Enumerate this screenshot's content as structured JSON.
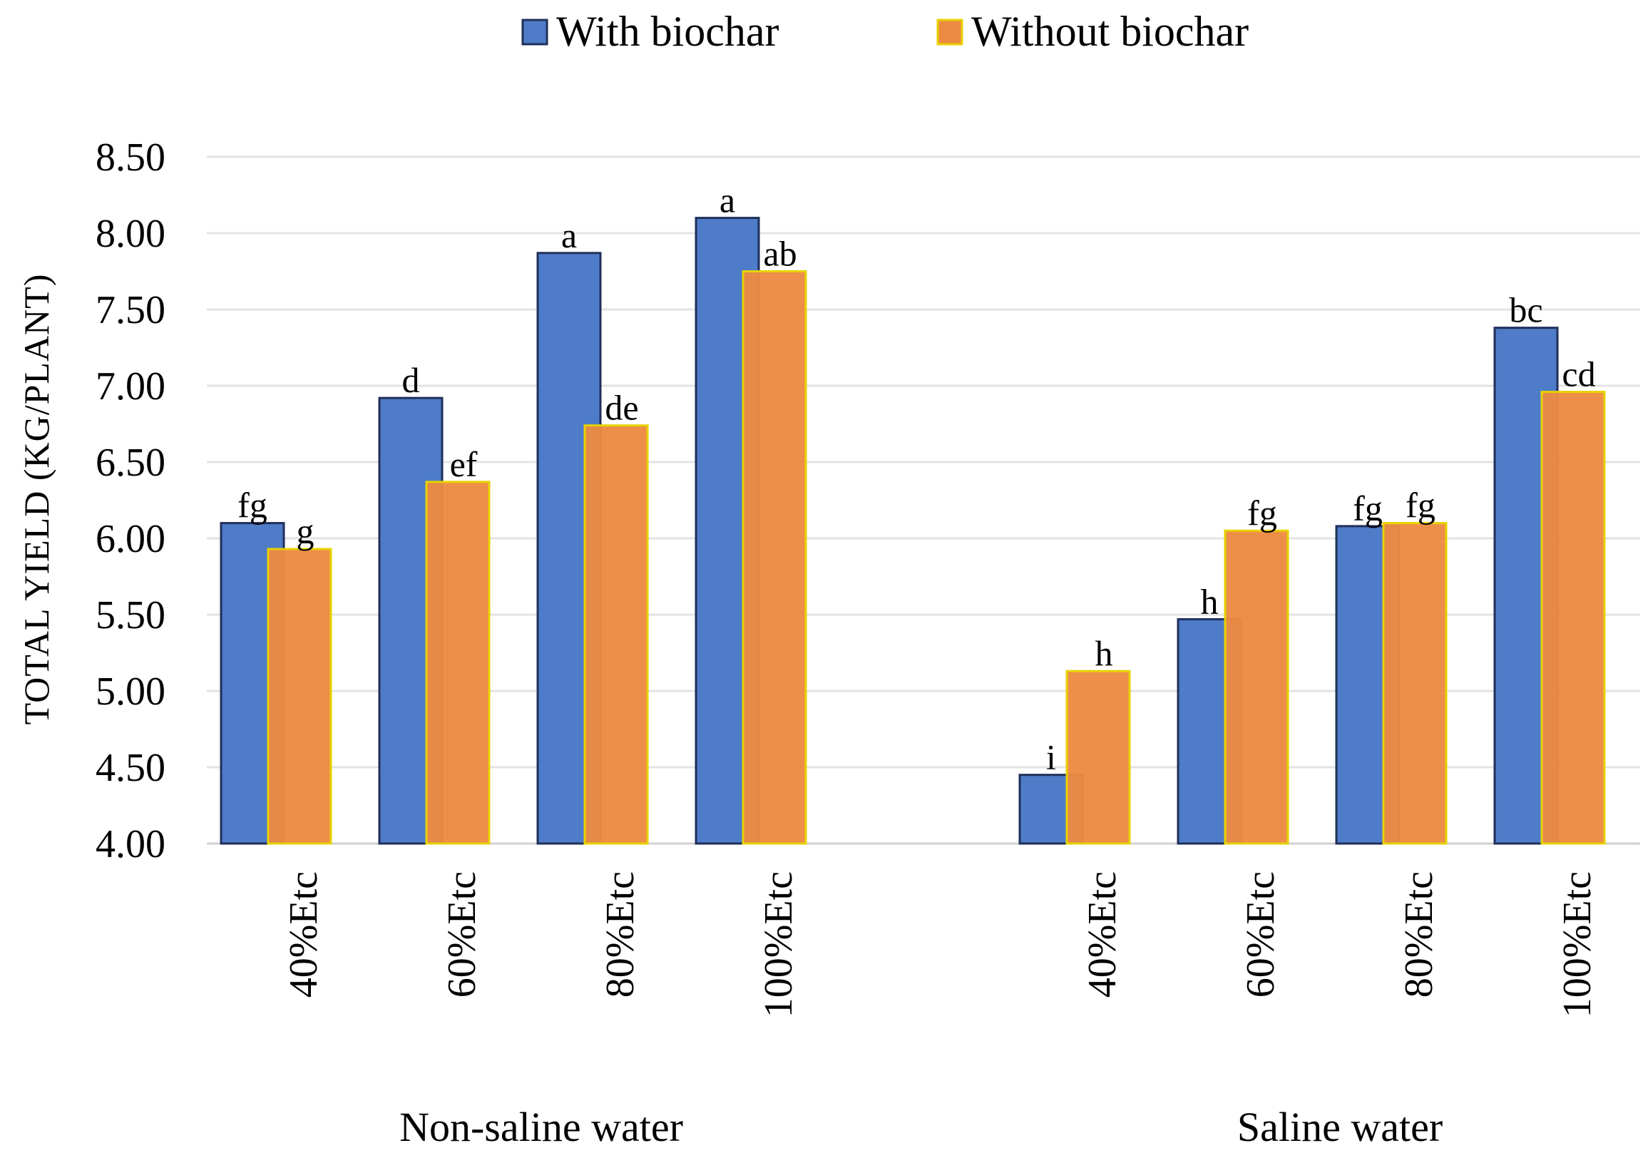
{
  "chart_data": {
    "type": "bar",
    "title": "",
    "ylabel": "TOTAL YIELD (KG/PLANT)",
    "xlabel": "",
    "ylim": [
      4.0,
      8.5
    ],
    "yticks": [
      "4.00",
      "4.50",
      "5.00",
      "5.50",
      "6.00",
      "6.50",
      "7.00",
      "7.50",
      "8.00",
      "8.50"
    ],
    "grid": true,
    "legend_position": "top-center",
    "groups": [
      "Non-saline water",
      "Saline water"
    ],
    "categories": [
      "40%Etc",
      "60%Etc",
      "80%Etc",
      "100%Etc"
    ],
    "series": [
      {
        "name": "With biochar",
        "color": "#4f7cc8",
        "values": [
          [
            6.1,
            6.92,
            7.87,
            8.1
          ],
          [
            4.45,
            5.47,
            6.08,
            7.38
          ]
        ],
        "labels": [
          [
            "fg",
            "d",
            "a",
            "a"
          ],
          [
            "i",
            "h",
            "fg",
            "bc"
          ]
        ]
      },
      {
        "name": "Without biochar",
        "color": "#ec8a42",
        "values": [
          [
            5.93,
            6.37,
            6.74,
            7.75
          ],
          [
            5.13,
            6.05,
            6.1,
            6.96
          ]
        ],
        "labels": [
          [
            "g",
            "ef",
            "de",
            "ab"
          ],
          [
            "h",
            "fg",
            "fg",
            "cd"
          ]
        ]
      }
    ]
  }
}
